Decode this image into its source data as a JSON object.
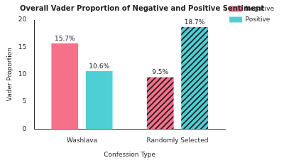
{
  "chart_data": {
    "type": "bar",
    "title": "Overall Vader Proportion of Negative and Positive Sentiment",
    "x_label": "Confession Type",
    "y_label": "Vader Proportion",
    "categories": [
      "Washlava",
      "Randomly Selected"
    ],
    "series": [
      {
        "name": "Negative",
        "color": "#f7708a",
        "values": [
          15.7,
          9.5
        ],
        "value_labels": [
          "15.7%",
          "9.5%"
        ]
      },
      {
        "name": "Positive",
        "color": "#4ecfd5",
        "values": [
          10.6,
          18.7
        ],
        "value_labels": [
          "10.6%",
          "18.7%"
        ]
      }
    ],
    "ylim": [
      0,
      20
    ],
    "yticks": [
      0,
      5,
      10,
      15,
      20
    ],
    "grid": false,
    "legend": "upper right",
    "data_labels": true
  }
}
